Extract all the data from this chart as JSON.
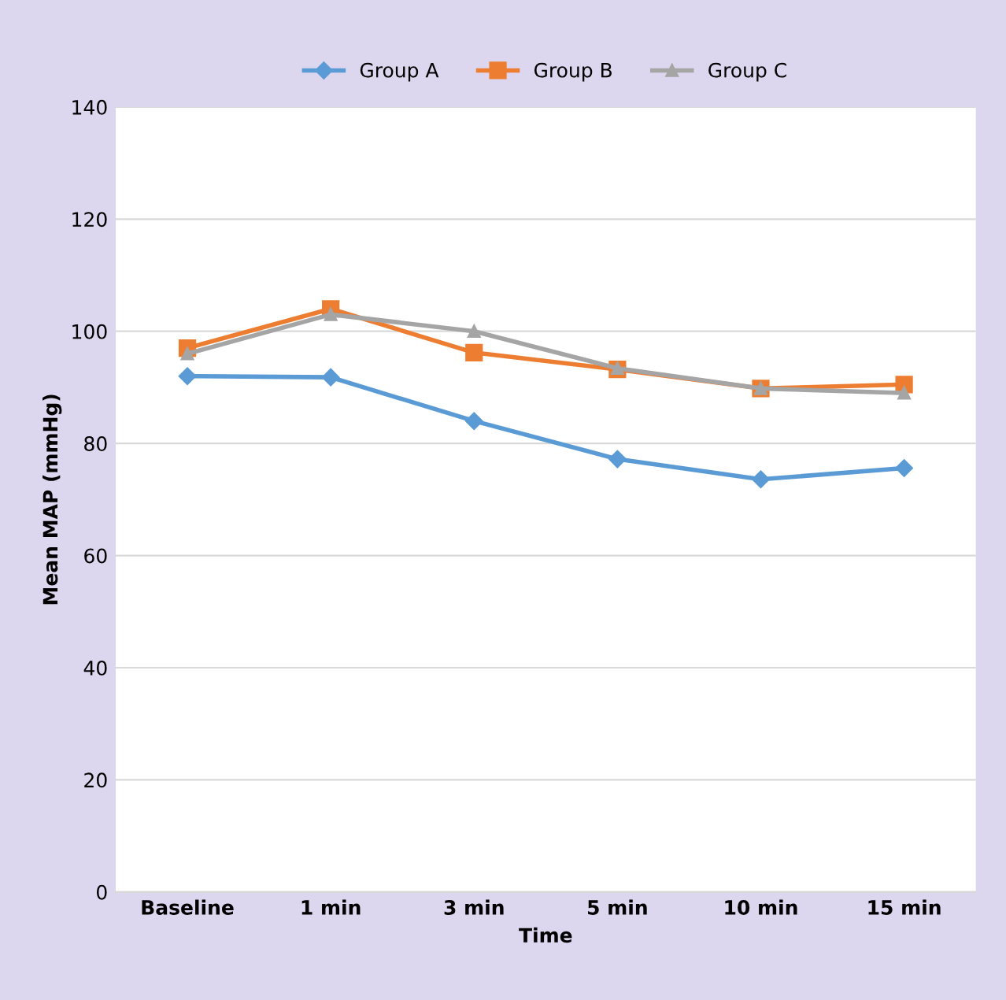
{
  "chart_data": {
    "type": "line",
    "xlabel": "Time",
    "ylabel": "Mean MAP (mmHg)",
    "categories": [
      "Baseline",
      "1 min",
      "3 min",
      "5 min",
      "10 min",
      "15 min"
    ],
    "series": [
      {
        "name": "Group A",
        "color": "#5b9bd5",
        "marker": "diamond",
        "values": [
          92,
          91.8,
          84,
          77.2,
          73.6,
          75.6
        ]
      },
      {
        "name": "Group B",
        "color": "#ed7d31",
        "marker": "square",
        "values": [
          97,
          104,
          96.2,
          93.2,
          89.8,
          90.5
        ]
      },
      {
        "name": "Group C",
        "color": "#a5a5a5",
        "marker": "triangle",
        "values": [
          96,
          103,
          100,
          93.4,
          89.8,
          89
        ]
      }
    ],
    "ylim": [
      0,
      140
    ],
    "yticks": [
      0,
      20,
      40,
      60,
      80,
      100,
      120,
      140
    ],
    "grid": "y",
    "legend": "top"
  }
}
